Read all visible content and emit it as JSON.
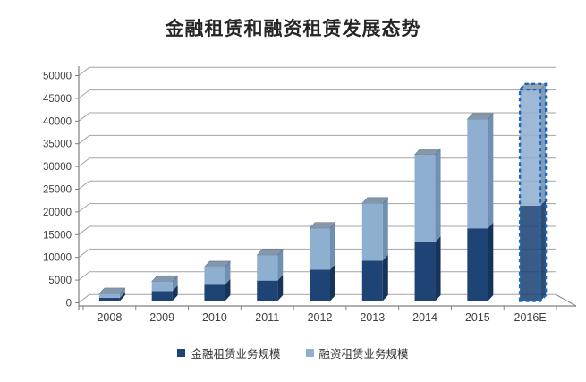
{
  "page": {
    "background": "#ffffff"
  },
  "chart_data": {
    "type": "bar",
    "stacked": true,
    "style": "3d",
    "title": "金融租赁和融资租赁发展态势",
    "categories": [
      "2008",
      "2009",
      "2010",
      "2011",
      "2012",
      "2013",
      "2014",
      "2015",
      "2016E"
    ],
    "series": [
      {
        "name": "金融租赁业务规模",
        "color": "#1E4475",
        "side_color": "#16335A",
        "values": [
          700,
          2200,
          3600,
          4500,
          6900,
          8900,
          13000,
          16000,
          21000
        ]
      },
      {
        "name": "融资租赁业务规模",
        "color": "#8FAFD0",
        "side_color": "#6F90B3",
        "top_color": "#8498AD",
        "values": [
          900,
          2100,
          3900,
          5600,
          9100,
          12600,
          19200,
          24000,
          25500
        ]
      }
    ],
    "totals": [
      1600,
      4300,
      7500,
      10100,
      16000,
      21500,
      32200,
      40000,
      46500
    ],
    "estimate": {
      "category": "2016E",
      "outline_color": "#1B66BE",
      "outline_style": "dashed"
    },
    "ylim": [
      0,
      50000
    ],
    "yticks": [
      0,
      5000,
      10000,
      15000,
      20000,
      25000,
      30000,
      35000,
      40000,
      45000,
      50000
    ],
    "grid": true,
    "legend_position": "bottom",
    "axis_color": "#808080",
    "grid_color": "#A3A3A3",
    "label_color": "#3F3F3F"
  }
}
